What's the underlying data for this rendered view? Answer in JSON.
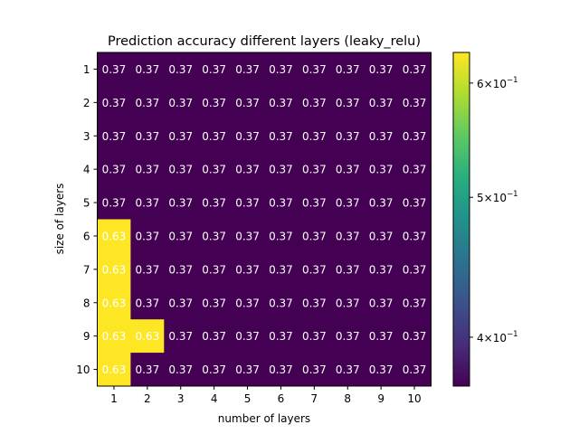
{
  "chart_data": {
    "type": "heatmap",
    "title": "Prediction accuracy different layers (leaky_relu)",
    "xlabel": "number of layers",
    "ylabel": "size of layers",
    "x_categories": [
      "1",
      "2",
      "3",
      "4",
      "5",
      "6",
      "7",
      "8",
      "9",
      "10"
    ],
    "y_categories": [
      "1",
      "2",
      "3",
      "4",
      "5",
      "6",
      "7",
      "8",
      "9",
      "10"
    ],
    "values": [
      [
        0.37,
        0.37,
        0.37,
        0.37,
        0.37,
        0.37,
        0.37,
        0.37,
        0.37,
        0.37
      ],
      [
        0.37,
        0.37,
        0.37,
        0.37,
        0.37,
        0.37,
        0.37,
        0.37,
        0.37,
        0.37
      ],
      [
        0.37,
        0.37,
        0.37,
        0.37,
        0.37,
        0.37,
        0.37,
        0.37,
        0.37,
        0.37
      ],
      [
        0.37,
        0.37,
        0.37,
        0.37,
        0.37,
        0.37,
        0.37,
        0.37,
        0.37,
        0.37
      ],
      [
        0.37,
        0.37,
        0.37,
        0.37,
        0.37,
        0.37,
        0.37,
        0.37,
        0.37,
        0.37
      ],
      [
        0.63,
        0.37,
        0.37,
        0.37,
        0.37,
        0.37,
        0.37,
        0.37,
        0.37,
        0.37
      ],
      [
        0.63,
        0.37,
        0.37,
        0.37,
        0.37,
        0.37,
        0.37,
        0.37,
        0.37,
        0.37
      ],
      [
        0.63,
        0.37,
        0.37,
        0.37,
        0.37,
        0.37,
        0.37,
        0.37,
        0.37,
        0.37
      ],
      [
        0.63,
        0.63,
        0.37,
        0.37,
        0.37,
        0.37,
        0.37,
        0.37,
        0.37,
        0.37
      ],
      [
        0.63,
        0.37,
        0.37,
        0.37,
        0.37,
        0.37,
        0.37,
        0.37,
        0.37,
        0.37
      ]
    ],
    "cell_labels": [
      [
        "0.37",
        "0.37",
        "0.37",
        "0.37",
        "0.37",
        "0.37",
        "0.37",
        "0.37",
        "0.37",
        "0.37"
      ],
      [
        "0.37",
        "0.37",
        "0.37",
        "0.37",
        "0.37",
        "0.37",
        "0.37",
        "0.37",
        "0.37",
        "0.37"
      ],
      [
        "0.37",
        "0.37",
        "0.37",
        "0.37",
        "0.37",
        "0.37",
        "0.37",
        "0.37",
        "0.37",
        "0.37"
      ],
      [
        "0.37",
        "0.37",
        "0.37",
        "0.37",
        "0.37",
        "0.37",
        "0.37",
        "0.37",
        "0.37",
        "0.37"
      ],
      [
        "0.37",
        "0.37",
        "0.37",
        "0.37",
        "0.37",
        "0.37",
        "0.37",
        "0.37",
        "0.37",
        "0.37"
      ],
      [
        "0.63",
        "0.37",
        "0.37",
        "0.37",
        "0.37",
        "0.37",
        "0.37",
        "0.37",
        "0.37",
        "0.37"
      ],
      [
        "0.63",
        "0.37",
        "0.37",
        "0.37",
        "0.37",
        "0.37",
        "0.37",
        "0.37",
        "0.37",
        "0.37"
      ],
      [
        "0.63",
        "0.37",
        "0.37",
        "0.37",
        "0.37",
        "0.37",
        "0.37",
        "0.37",
        "0.37",
        "0.37"
      ],
      [
        "0.63",
        "0.63",
        "0.37",
        "0.37",
        "0.37",
        "0.37",
        "0.37",
        "0.37",
        "0.37",
        "0.37"
      ],
      [
        "0.63",
        "0.37",
        "0.37",
        "0.37",
        "0.37",
        "0.37",
        "0.37",
        "0.37",
        "0.37",
        "0.37"
      ]
    ],
    "colormap": "viridis",
    "color_scale": "log",
    "vmin": 0.37,
    "vmax": 0.63,
    "colorbar": {
      "ticks": [
        {
          "value": 0.4,
          "mantissa": "4",
          "base": "10",
          "exponent": "−1"
        },
        {
          "value": 0.5,
          "mantissa": "5",
          "base": "10",
          "exponent": "−1"
        },
        {
          "value": 0.6,
          "mantissa": "6",
          "base": "10",
          "exponent": "−1"
        }
      ]
    },
    "colors": {
      "low": "#440154",
      "high": "#fde725",
      "low_text": "#ffffff",
      "high_text": "#ffffff"
    }
  }
}
